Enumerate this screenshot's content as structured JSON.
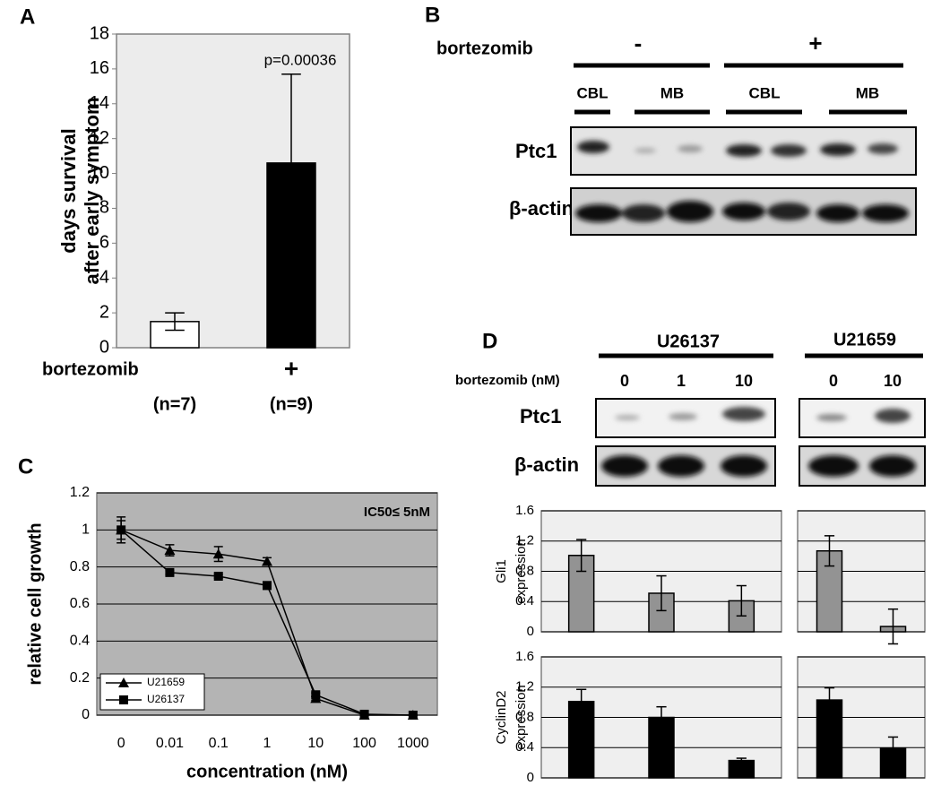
{
  "chart_data": [
    {
      "type": "bar",
      "panel": "A",
      "category_title": "bortezomib",
      "categories": [
        null,
        "+"
      ],
      "n_labels": [
        "(n=7)",
        "(n=9)"
      ],
      "values": [
        1.5,
        10.6
      ],
      "errors": [
        0.5,
        5.1
      ],
      "colors": [
        "#ffffff",
        "#000000"
      ],
      "ylabel": [
        "days survival",
        "after early symptom"
      ],
      "ylim": [
        0,
        18
      ],
      "yticks": [
        0,
        2,
        4,
        6,
        8,
        10,
        12,
        14,
        16,
        18
      ],
      "annotation": "p=0.00036",
      "grid": false
    },
    {
      "type": "line",
      "panel": "C",
      "categories": [
        "0",
        "0.01",
        "0.1",
        "1",
        "10",
        "100",
        "1000"
      ],
      "series": [
        {
          "name": "U21659",
          "marker": "triangle",
          "color": "#000000",
          "values": [
            1,
            0.89,
            0.87,
            0.83,
            0.09,
            0,
            0
          ],
          "errors": [
            0.05,
            0.03,
            0.04,
            0.02,
            0.01,
            0,
            0
          ]
        },
        {
          "name": "U26137",
          "marker": "square",
          "color": "#000000",
          "values": [
            1,
            0.77,
            0.75,
            0.7,
            0.11,
            0.005,
            0
          ],
          "errors": [
            0.07,
            0.01,
            0.01,
            0.02,
            0.01,
            0,
            0
          ]
        }
      ],
      "xlabel": "concentration (nM)",
      "ylabel": [
        "relative cell growth"
      ],
      "ylim": [
        0,
        1.2
      ],
      "yticks": [
        0,
        0.2,
        0.4,
        0.6,
        0.8,
        1,
        1.2
      ],
      "annotation": "IC50≤ 5nM",
      "grid": true,
      "legend": "lower-left"
    },
    {
      "type": "bar",
      "values": [
        1.01,
        0.51,
        0.41
      ],
      "errors": [
        0.21,
        0.23,
        0.2
      ],
      "color": "#939393",
      "ylabel": [
        "Gli1",
        "expression"
      ],
      "ylim": [
        0,
        1.6
      ],
      "yticks": [
        0,
        0.4,
        0.8,
        1.2,
        1.6
      ],
      "grid": true
    },
    {
      "type": "bar",
      "values": [
        1.07,
        0.07
      ],
      "errors": [
        0.2,
        0.23
      ],
      "color": "#939393",
      "ylim": [
        0,
        1.6
      ],
      "yticks": [
        0,
        0.4,
        0.8,
        1.2,
        1.6
      ],
      "grid": true,
      "show_tick_labels": false
    },
    {
      "type": "bar",
      "values": [
        1.01,
        0.8,
        0.23
      ],
      "errors": [
        0.16,
        0.14,
        0.03
      ],
      "color": "#000000",
      "ylabel": [
        "CyclinD2",
        "expression"
      ],
      "ylim": [
        0,
        1.6
      ],
      "yticks": [
        0,
        0.4,
        0.8,
        1.2,
        1.6
      ],
      "grid": true
    },
    {
      "type": "bar",
      "values": [
        1.03,
        0.39
      ],
      "errors": [
        0.16,
        0.15
      ],
      "color": "#000000",
      "ylim": [
        0,
        1.6
      ],
      "yticks": [
        0,
        0.4,
        0.8,
        1.2,
        1.6
      ],
      "grid": true,
      "show_tick_labels": false
    }
  ],
  "blot_b": {
    "panel": "B",
    "treatment": "bortezomib",
    "groups": [
      "-",
      "+"
    ],
    "lanes": [
      "CBL",
      "MB",
      "CBL",
      "MB"
    ],
    "rows": [
      "Ptc1",
      "β-actin"
    ]
  },
  "blot_d": {
    "panel": "D",
    "cell_lines": [
      "U26137",
      "U21659"
    ],
    "treatment": "bortezomib (nM)",
    "doses": [
      [
        "0",
        "1",
        "10"
      ],
      [
        "0",
        "10"
      ]
    ],
    "rows": [
      "Ptc1",
      "β-actin"
    ]
  }
}
